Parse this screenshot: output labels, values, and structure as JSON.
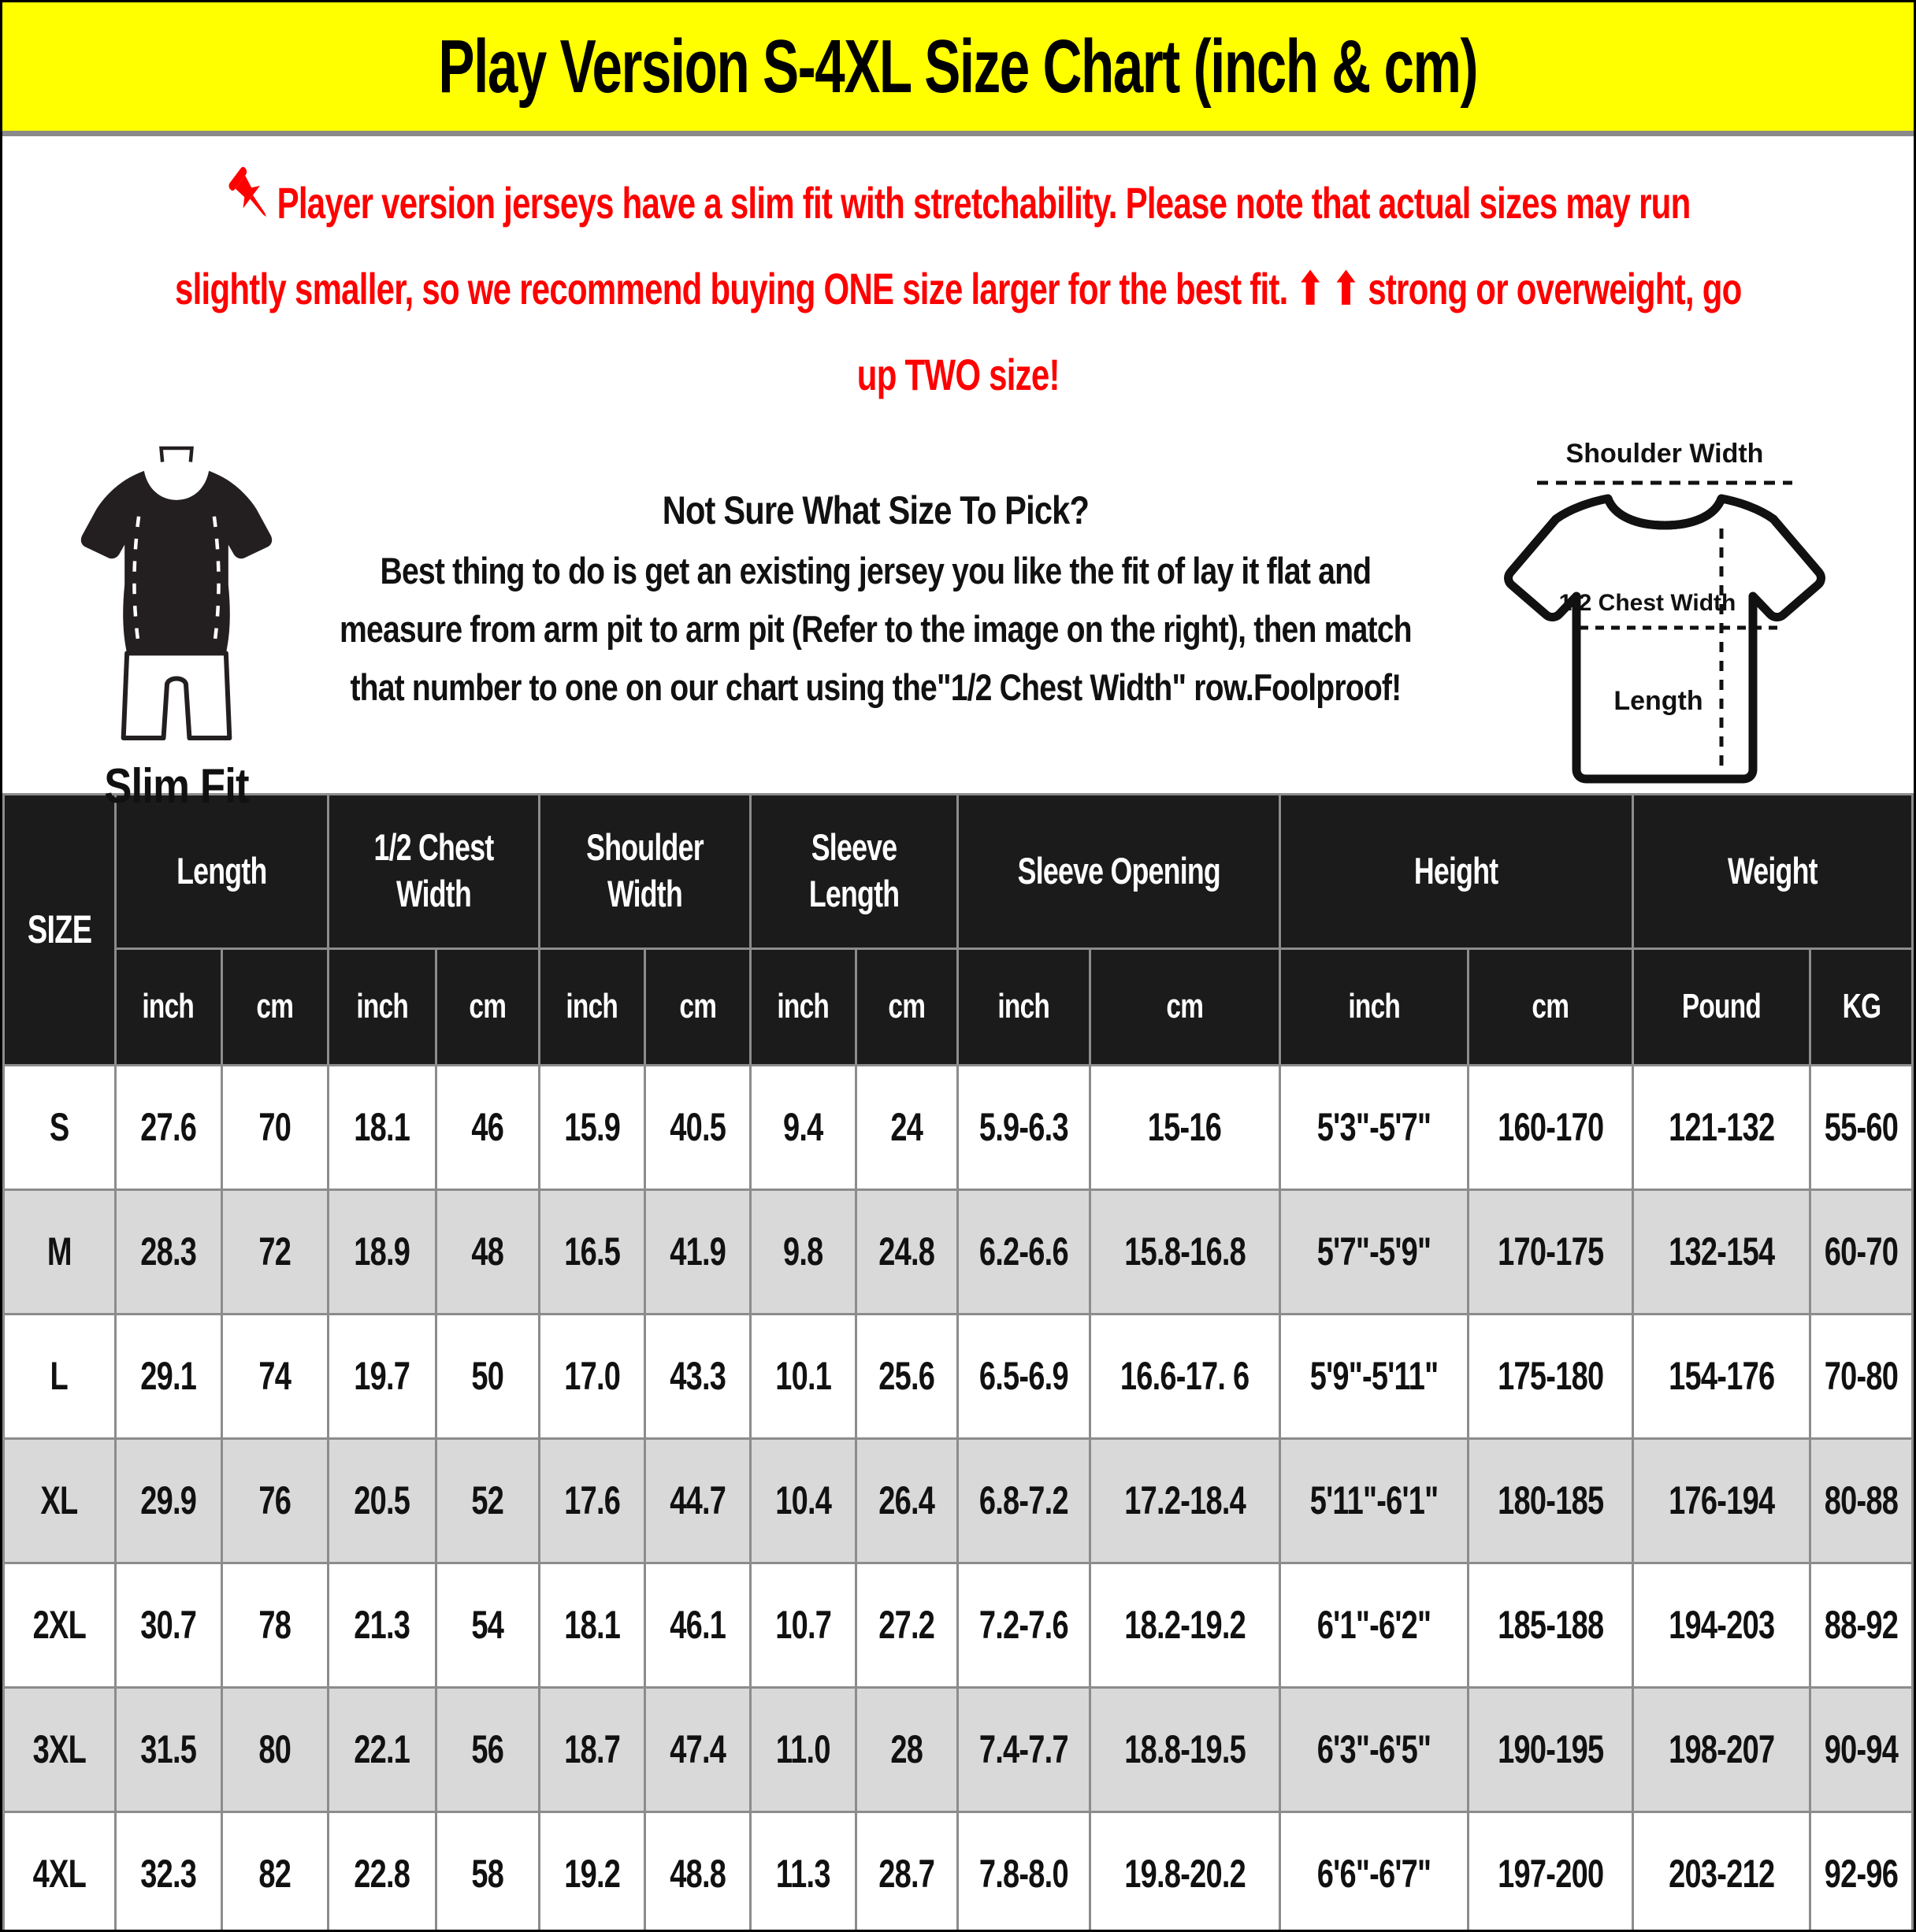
{
  "banner": {
    "title": "Play Version S-4XL Size Chart (inch & cm)",
    "bg_color": "#FFFF00"
  },
  "notice": {
    "color": "#FF0000",
    "lines": [
      "Player version jerseys have a slim fit with stretchability. Please note that actual sizes may run",
      "slightly smaller, so we recommend buying ONE size larger for the best fit. ⬆ ⬆ strong or overweight, go",
      "up TWO size!"
    ]
  },
  "fit_guide": {
    "slim_fit_label": "Slim Fit",
    "heading": "Not Sure What Size To Pick?",
    "body": "Best thing to do is get an existing jersey you like the fit of lay it flat and measure from arm pit to arm pit (Refer to the image on the right), then match that number to one on our chart using the\"1/2 Chest Width\" row.Foolproof!",
    "diagram": {
      "shoulder": "Shoulder Width",
      "chest": "1/2 Chest Width",
      "length": "Length"
    }
  },
  "table": {
    "size_header": "SIZE",
    "groups": [
      {
        "label": "Length",
        "subs": [
          "inch",
          "cm"
        ]
      },
      {
        "label": "1/2 Chest Width",
        "subs": [
          "inch",
          "cm"
        ]
      },
      {
        "label": "Shoulder Width",
        "subs": [
          "inch",
          "cm"
        ]
      },
      {
        "label": "Sleeve Length",
        "subs": [
          "inch",
          "cm"
        ]
      },
      {
        "label": "Sleeve Opening",
        "subs": [
          "inch",
          "cm"
        ]
      },
      {
        "label": "Height",
        "subs": [
          "inch",
          "cm"
        ]
      },
      {
        "label": "Weight",
        "subs": [
          "Pound",
          "KG"
        ]
      }
    ],
    "rows": [
      {
        "size": "S",
        "values": [
          "27.6",
          "70",
          "18.1",
          "46",
          "15.9",
          "40.5",
          "9.4",
          "24",
          "5.9-6.3",
          "15-16",
          "5'3\"-5'7\"",
          "160-170",
          "121-132",
          "55-60"
        ]
      },
      {
        "size": "M",
        "values": [
          "28.3",
          "72",
          "18.9",
          "48",
          "16.5",
          "41.9",
          "9.8",
          "24.8",
          "6.2-6.6",
          "15.8-16.8",
          "5'7\"-5'9\"",
          "170-175",
          "132-154",
          "60-70"
        ]
      },
      {
        "size": "L",
        "values": [
          "29.1",
          "74",
          "19.7",
          "50",
          "17.0",
          "43.3",
          "10.1",
          "25.6",
          "6.5-6.9",
          "16.6-17. 6",
          "5'9\"-5'11\"",
          "175-180",
          "154-176",
          "70-80"
        ]
      },
      {
        "size": "XL",
        "values": [
          "29.9",
          "76",
          "20.5",
          "52",
          "17.6",
          "44.7",
          "10.4",
          "26.4",
          "6.8-7.2",
          "17.2-18.4",
          "5'11\"-6'1\"",
          "180-185",
          "176-194",
          "80-88"
        ]
      },
      {
        "size": "2XL",
        "values": [
          "30.7",
          "78",
          "21.3",
          "54",
          "18.1",
          "46.1",
          "10.7",
          "27.2",
          "7.2-7.6",
          "18.2-19.2",
          "6'1\"-6'2\"",
          "185-188",
          "194-203",
          "88-92"
        ]
      },
      {
        "size": "3XL",
        "values": [
          "31.5",
          "80",
          "22.1",
          "56",
          "18.7",
          "47.4",
          "11.0",
          "28",
          "7.4-7.7",
          "18.8-19.5",
          "6'3\"-6'5\"",
          "190-195",
          "198-207",
          "90-94"
        ]
      },
      {
        "size": "4XL",
        "values": [
          "32.3",
          "82",
          "22.8",
          "58",
          "19.2",
          "48.8",
          "11.3",
          "28.7",
          "7.8-8.0",
          "19.8-20.2",
          "6'6\"-6'7\"",
          "197-200",
          "203-212",
          "92-96"
        ]
      }
    ],
    "colors": {
      "header_bg": "#1b1b1b",
      "alt_row_bg": "#d9d9d9",
      "border": "#8c8c8c"
    }
  }
}
